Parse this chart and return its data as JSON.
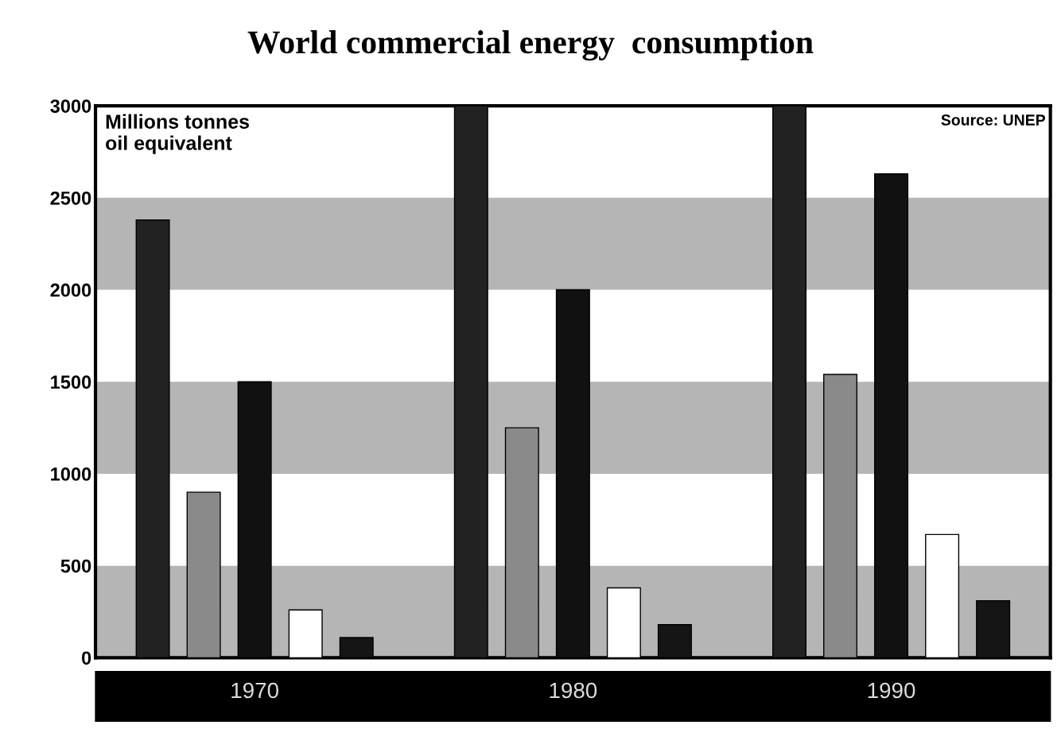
{
  "chart_data": {
    "type": "bar",
    "title": "World commercial energy  consumption",
    "categories": [
      "1970",
      "1980",
      "1990"
    ],
    "series": [
      {
        "color": "#222222",
        "values": [
          2380,
          3000,
          3000
        ]
      },
      {
        "color": "#8a8a8a",
        "values": [
          900,
          1250,
          1540
        ]
      },
      {
        "color": "#111111",
        "values": [
          1500,
          2000,
          2630
        ]
      },
      {
        "color": "#ffffff",
        "values": [
          260,
          380,
          670
        ]
      },
      {
        "color": "#151515",
        "values": [
          110,
          180,
          310
        ]
      }
    ],
    "ylim": [
      0,
      3000
    ],
    "yticks": [
      0,
      500,
      1000,
      1500,
      2000,
      2500,
      3000
    ],
    "bands": [
      {
        "axis": "y",
        "from": 0,
        "to": 500,
        "color": "#b5b5b5"
      },
      {
        "axis": "y",
        "from": 1000,
        "to": 1500,
        "color": "#b5b5b5"
      },
      {
        "axis": "y",
        "from": 2000,
        "to": 2500,
        "color": "#b5b5b5"
      }
    ],
    "annotations": [
      "Millions tonnes\noil equivalent",
      "Source: UNEP"
    ],
    "grid": false,
    "legend": false
  }
}
